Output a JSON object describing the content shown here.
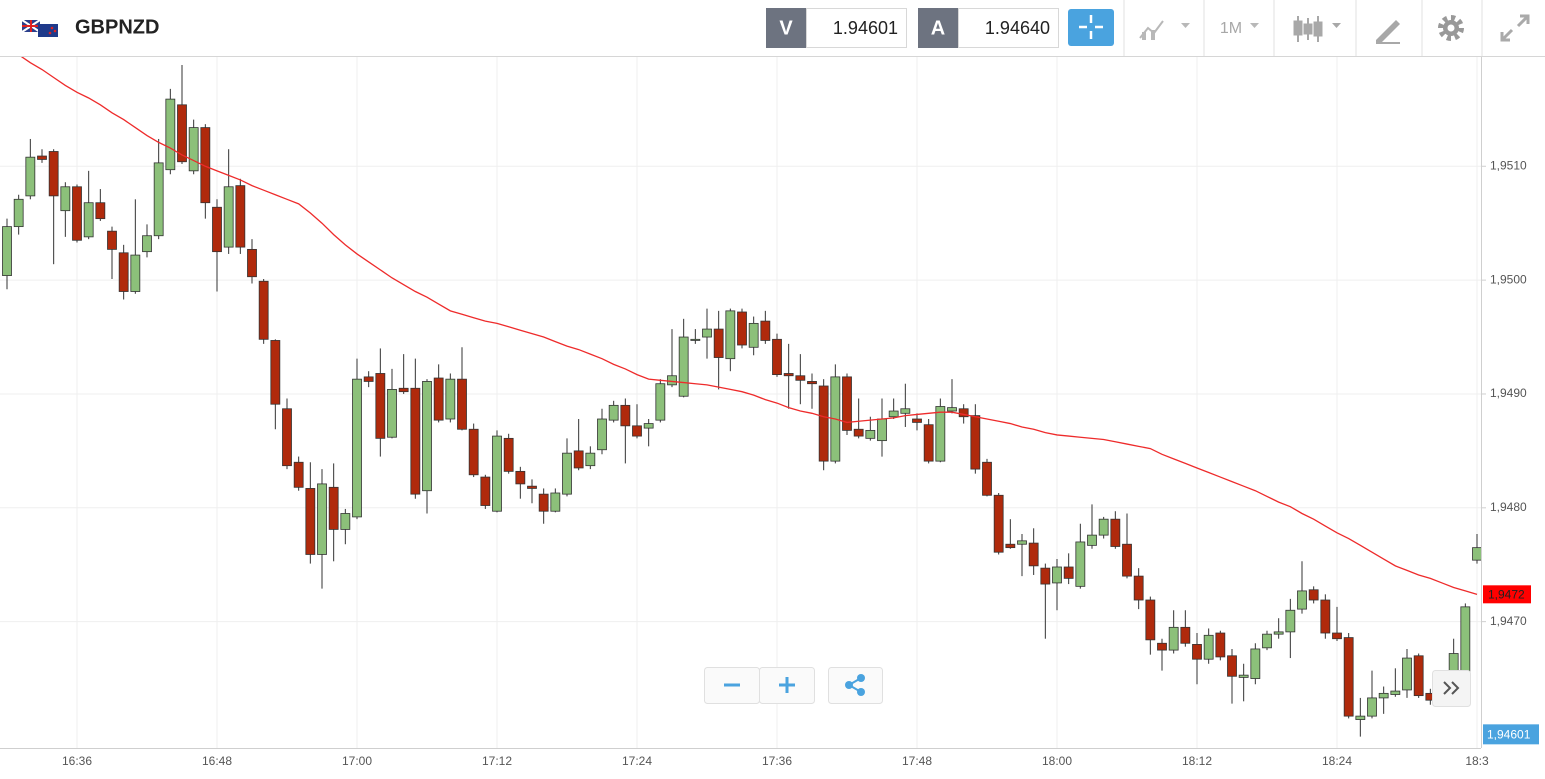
{
  "header": {
    "symbol": "GBPNZD",
    "sell_label": "V",
    "sell_price": "1.94601",
    "buy_label": "A",
    "buy_price": "1.94640",
    "timeframe": "1M"
  },
  "chart_data": {
    "type": "candlestick",
    "categories": [
      null,
      null,
      null,
      null,
      null,
      null,
      "16:36",
      null,
      null,
      null,
      null,
      null,
      null,
      null,
      null,
      null,
      null,
      null,
      "16:48",
      null,
      null,
      null,
      null,
      null,
      null,
      null,
      null,
      null,
      null,
      null,
      "17:00",
      null,
      null,
      null,
      null,
      null,
      null,
      null,
      null,
      null,
      null,
      null,
      "17:12",
      null,
      null,
      null,
      null,
      null,
      null,
      null,
      null,
      null,
      null,
      null,
      "17:24",
      null,
      null,
      null,
      null,
      null,
      null,
      null,
      null,
      null,
      null,
      null,
      "17:36",
      null,
      null,
      null,
      null,
      null,
      null,
      null,
      null,
      null,
      null,
      null,
      "17:48",
      null,
      null,
      null,
      null,
      null,
      null,
      null,
      null,
      null,
      null,
      null,
      "18:00",
      null,
      null,
      null,
      null,
      null,
      null,
      null,
      null,
      null,
      null,
      null,
      "18:12",
      null,
      null,
      null,
      null,
      null,
      null,
      null,
      null,
      null,
      null,
      null,
      "18:24",
      null,
      null,
      null,
      null,
      null,
      null,
      null,
      null,
      null,
      null,
      null,
      "18:3"
    ],
    "open": [
      1.95004,
      1.95047,
      1.95074,
      1.95109,
      1.95113,
      1.95061,
      1.95082,
      1.95038,
      1.95068,
      1.95043,
      1.95024,
      1.9499,
      1.95025,
      1.95039,
      1.95097,
      1.95154,
      1.95096,
      1.95134,
      1.95064,
      1.95029,
      1.95083,
      1.95027,
      1.94999,
      1.94947,
      1.94887,
      1.9484,
      1.94817,
      1.94759,
      1.94818,
      1.94781,
      1.94792,
      1.94915,
      1.94918,
      1.94862,
      1.94905,
      1.94905,
      1.94815,
      1.94914,
      1.94878,
      1.94913,
      1.94869,
      1.94827,
      1.94797,
      1.94861,
      1.94832,
      1.94819,
      1.94812,
      1.94797,
      1.94812,
      1.9485,
      1.94837,
      1.94851,
      1.94877,
      1.9489,
      1.94872,
      1.9487,
      1.94877,
      1.94908,
      1.94898,
      1.94947,
      1.9495,
      1.94957,
      1.94931,
      1.94972,
      1.94941,
      1.94964,
      1.94948,
      1.94918,
      1.94916,
      1.94911,
      1.94907,
      1.94841,
      1.94915,
      1.94869,
      1.94861,
      1.94859,
      1.9488,
      1.94883,
      1.94878,
      1.94873,
      1.94841,
      1.94885,
      1.94887,
      1.94881,
      1.9484,
      1.94811,
      1.94768,
      1.94768,
      1.94769,
      1.94747,
      1.94734,
      1.94748,
      1.94731,
      1.94767,
      1.94776,
      1.9479,
      1.94768,
      1.9474,
      1.94719,
      1.94681,
      1.94675,
      1.94695,
      1.9468,
      1.94667,
      1.9469,
      1.9467,
      1.94651,
      1.9465,
      1.94677,
      1.94689,
      1.94691,
      1.94711,
      1.94728,
      1.94719,
      1.9469,
      1.94686,
      1.94614,
      1.94617,
      1.94633,
      1.94636,
      1.9464,
      1.9467,
      1.94637,
      1.9463,
      1.94627,
      1.94654,
      1.94754
    ],
    "high": [
      1.95054,
      1.95075,
      1.95124,
      1.95115,
      1.95115,
      1.95086,
      1.95084,
      1.95096,
      1.9508,
      1.95047,
      1.95031,
      1.95071,
      1.95049,
      1.95124,
      1.95168,
      1.95189,
      1.95141,
      1.95137,
      1.95071,
      1.95115,
      1.95089,
      1.95036,
      1.95001,
      1.94948,
      1.94896,
      1.94845,
      1.9484,
      1.94834,
      1.94839,
      1.94799,
      1.94931,
      1.9492,
      1.9494,
      1.94922,
      1.94935,
      1.94931,
      1.94913,
      1.94926,
      1.94918,
      1.94941,
      1.94874,
      1.94829,
      1.94868,
      1.94865,
      1.94836,
      1.94825,
      1.94817,
      1.94817,
      1.94861,
      1.94878,
      1.94854,
      1.94887,
      1.94894,
      1.94896,
      1.94891,
      1.94878,
      1.94913,
      1.94957,
      1.94966,
      1.94957,
      1.94975,
      1.94973,
      1.94975,
      1.94975,
      1.94968,
      1.94973,
      1.94953,
      1.94944,
      1.94935,
      1.94918,
      1.94913,
      1.94926,
      1.94918,
      1.94896,
      1.9488,
      1.94896,
      1.94896,
      1.94909,
      1.94883,
      1.94878,
      1.94896,
      1.94913,
      1.94891,
      1.94891,
      1.94843,
      1.94813,
      1.9479,
      1.94777,
      1.94782,
      1.94751,
      1.94755,
      1.9476,
      1.94786,
      1.94803,
      1.94792,
      1.94797,
      1.94795,
      1.94747,
      1.94722,
      1.94685,
      1.9471,
      1.9471,
      1.9469,
      1.94694,
      1.94692,
      1.94676,
      1.94663,
      1.94681,
      1.94692,
      1.94703,
      1.9472,
      1.94753,
      1.94731,
      1.94724,
      1.94713,
      1.9469,
      1.94633,
      1.94657,
      1.94643,
      1.94659,
      1.94676,
      1.94672,
      1.94641,
      1.94641,
      1.94685,
      1.94716,
      1.94777
    ],
    "low": [
      1.94992,
      1.9504,
      1.95071,
      1.95103,
      1.95014,
      1.95038,
      1.95033,
      1.95036,
      1.95052,
      1.95001,
      1.94983,
      1.94988,
      1.9502,
      1.95036,
      1.95093,
      1.95102,
      1.95093,
      1.95054,
      1.9499,
      1.95023,
      1.95023,
      1.94997,
      1.94944,
      1.94869,
      1.94834,
      1.94815,
      1.94751,
      1.94729,
      1.94753,
      1.94768,
      1.9479,
      1.94906,
      1.94845,
      1.94861,
      1.949,
      1.94808,
      1.94795,
      1.94875,
      1.94875,
      1.94868,
      1.94827,
      1.94799,
      1.94796,
      1.9483,
      1.94808,
      1.94804,
      1.94786,
      1.94796,
      1.9481,
      1.94833,
      1.94834,
      1.94847,
      1.94875,
      1.94839,
      1.94861,
      1.94854,
      1.94875,
      1.94906,
      1.94897,
      1.94944,
      1.94931,
      1.94904,
      1.9492,
      1.9494,
      1.94934,
      1.94944,
      1.94915,
      1.94887,
      1.94891,
      1.94887,
      1.94833,
      1.94839,
      1.94864,
      1.94861,
      1.94859,
      1.94845,
      1.94878,
      1.94871,
      1.94868,
      1.94839,
      1.9484,
      1.94883,
      1.94874,
      1.9483,
      1.9481,
      1.94759,
      1.94764,
      1.9474,
      1.94741,
      1.94685,
      1.9471,
      1.94733,
      1.94729,
      1.94764,
      1.94773,
      1.94764,
      1.94738,
      1.94711,
      1.94671,
      1.94657,
      1.94672,
      1.94678,
      1.94645,
      1.94663,
      1.94666,
      1.94628,
      1.9463,
      1.94645,
      1.94675,
      1.94685,
      1.94668,
      1.94707,
      1.94716,
      1.94685,
      1.94683,
      1.94615,
      1.94599,
      1.94615,
      1.94619,
      1.94634,
      1.94633,
      1.94633,
      1.94627,
      1.94626,
      1.94626,
      1.9465,
      1.94751
    ],
    "close": [
      1.95047,
      1.95071,
      1.95108,
      1.95106,
      1.95074,
      1.95082,
      1.95035,
      1.95068,
      1.95054,
      1.95027,
      1.9499,
      1.95022,
      1.95039,
      1.95103,
      1.95159,
      1.95104,
      1.95134,
      1.95068,
      1.95025,
      1.95082,
      1.95029,
      1.95003,
      1.94948,
      1.94891,
      1.94837,
      1.94818,
      1.94759,
      1.94821,
      1.94781,
      1.94795,
      1.94913,
      1.94911,
      1.94861,
      1.94904,
      1.94902,
      1.94812,
      1.94911,
      1.94877,
      1.94913,
      1.94869,
      1.94829,
      1.94802,
      1.94863,
      1.94832,
      1.94821,
      1.94817,
      1.94797,
      1.94813,
      1.94848,
      1.94835,
      1.94848,
      1.94878,
      1.9489,
      1.94872,
      1.94863,
      1.94874,
      1.94909,
      1.94916,
      1.9495,
      1.94948,
      1.94957,
      1.94932,
      1.94973,
      1.94943,
      1.94962,
      1.94947,
      1.94917,
      1.94916,
      1.94912,
      1.94909,
      1.94841,
      1.94915,
      1.94868,
      1.94863,
      1.94868,
      1.94878,
      1.94885,
      1.94887,
      1.94875,
      1.94841,
      1.94889,
      1.94888,
      1.9488,
      1.94834,
      1.94811,
      1.94761,
      1.94765,
      1.94771,
      1.94749,
      1.94733,
      1.94748,
      1.94738,
      1.9477,
      1.94776,
      1.9479,
      1.94766,
      1.9474,
      1.94719,
      1.94684,
      1.94675,
      1.94695,
      1.94681,
      1.94667,
      1.94688,
      1.94669,
      1.94652,
      1.94653,
      1.94676,
      1.94689,
      1.94691,
      1.9471,
      1.94727,
      1.94719,
      1.9469,
      1.94685,
      1.94617,
      1.94617,
      1.94633,
      1.94637,
      1.94639,
      1.94668,
      1.94635,
      1.94631,
      1.94627,
      1.94672,
      1.94713,
      1.94765
    ],
    "up_color": "#8cc07a",
    "down_color": "#b02a0c",
    "moving_average": {
      "color": "#ee2b2b",
      "values": [
        null,
        1.95198,
        1.95191,
        1.95185,
        1.95178,
        1.95171,
        1.95165,
        1.9516,
        1.95154,
        1.95147,
        1.95141,
        1.95134,
        1.95127,
        1.95121,
        1.95116,
        1.9511,
        1.95105,
        1.951,
        1.95096,
        1.95092,
        1.95088,
        1.95083,
        1.95079,
        1.95075,
        1.95071,
        1.95067,
        1.95059,
        1.9505,
        1.9504,
        1.95031,
        1.95023,
        1.95016,
        1.95009,
        1.95002,
        1.94996,
        1.9499,
        1.94985,
        1.94979,
        1.94973,
        1.9497,
        1.94967,
        1.94964,
        1.94962,
        1.94959,
        1.94956,
        1.94953,
        1.9495,
        1.94946,
        1.94942,
        1.94939,
        1.94935,
        1.94931,
        1.94926,
        1.94922,
        1.94917,
        1.94913,
        1.94912,
        1.94911,
        1.9491,
        1.94909,
        1.94908,
        1.94906,
        1.94904,
        1.94902,
        1.94899,
        1.94895,
        1.94892,
        1.94888,
        1.94885,
        1.94883,
        1.9488,
        1.94878,
        1.94875,
        1.94876,
        1.94877,
        1.94878,
        1.94879,
        1.94881,
        1.94882,
        1.94883,
        1.94884,
        1.94884,
        1.94882,
        1.9488,
        1.94878,
        1.94876,
        1.94874,
        1.94871,
        1.94869,
        1.94866,
        1.94864,
        1.94863,
        1.94862,
        1.94861,
        1.9486,
        1.94858,
        1.94856,
        1.94854,
        1.94852,
        1.94847,
        1.94843,
        1.94839,
        1.94835,
        1.94831,
        1.94827,
        1.94823,
        1.94819,
        1.94815,
        1.9481,
        1.94805,
        1.94801,
        1.94795,
        1.9479,
        1.94784,
        1.94778,
        1.94773,
        1.94767,
        1.94761,
        1.94755,
        1.94749,
        1.94745,
        1.94741,
        1.94738,
        1.94734,
        1.9473,
        1.94727,
        1.94724
      ],
      "last_label": {
        "value": 1.94724,
        "label": "1,9472"
      }
    },
    "price_line": {
      "value": 1.94601,
      "label": "1,94601",
      "color": "#4aa3df"
    },
    "ylim": [
      1.94589,
      1.95196
    ],
    "yticks": [
      {
        "value": 1.947,
        "label": "1,9470"
      },
      {
        "value": 1.948,
        "label": "1,9480"
      },
      {
        "value": 1.949,
        "label": "1,9490"
      },
      {
        "value": 1.95,
        "label": "1,9500"
      },
      {
        "value": 1.951,
        "label": "1,9510"
      }
    ],
    "grid": true
  }
}
